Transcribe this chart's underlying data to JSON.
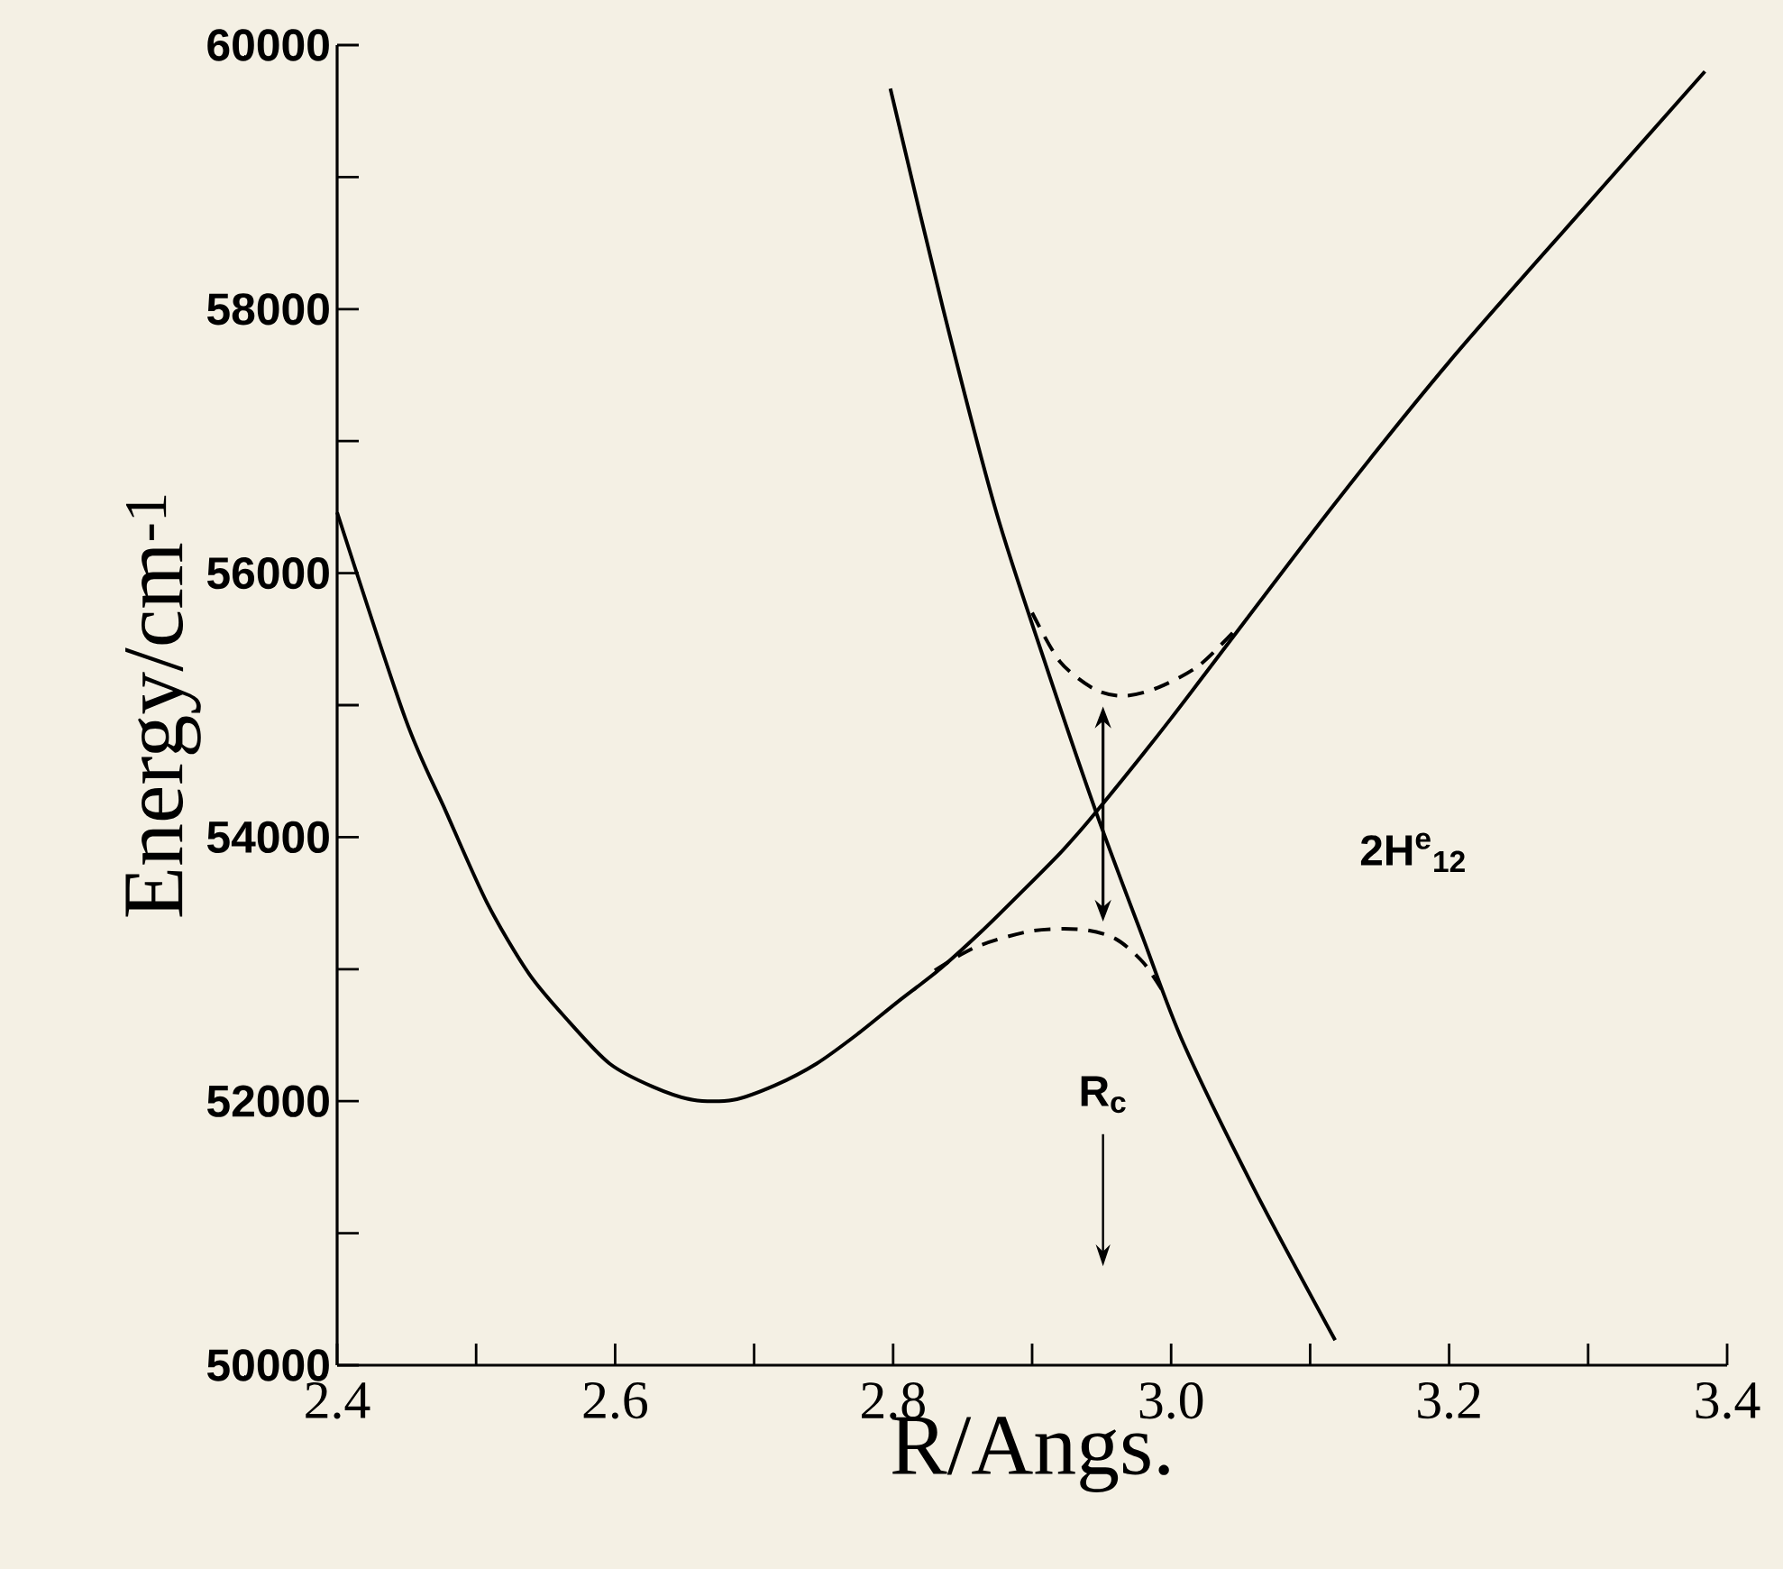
{
  "chart_data": {
    "type": "line",
    "xlabel": "R/Angs.",
    "ylabel": "Energy/cm$^{-1}$",
    "xlim": [
      2.4,
      3.4
    ],
    "ylim": [
      50000,
      60000
    ],
    "xticks": [
      2.4,
      {
        "value": 2.5,
        "label": null
      },
      2.6,
      {
        "value": 2.7,
        "label": null
      },
      2.8,
      {
        "value": 2.9,
        "label": null
      },
      {
        "value": 3,
        "label": "3.0"
      },
      {
        "value": 3.1,
        "label": null
      },
      3.2,
      {
        "value": 3.3,
        "label": null
      },
      3.4
    ],
    "yticks": [
      50000,
      {
        "value": 51000,
        "label": null
      },
      52000,
      {
        "value": 53000,
        "label": null
      },
      54000,
      {
        "value": 55000,
        "label": null
      },
      56000,
      {
        "value": 57000,
        "label": null
      },
      58000,
      {
        "value": 59000,
        "label": null
      },
      60000
    ],
    "series": [
      {
        "color": "#000000",
        "x": [
          2.4,
          2.449,
          2.478,
          2.508,
          2.538,
          2.567,
          2.596,
          2.627,
          2.656,
          2.685,
          2.715,
          2.745,
          2.774,
          2.803,
          2.833,
          2.863,
          2.892,
          2.922,
          2.946,
          3.0,
          3.114,
          3.2,
          3.3,
          3.384
        ],
        "values": [
          56460,
          54900,
          54200,
          53500,
          52965,
          52600,
          52285,
          52110,
          52010,
          52010,
          52120,
          52285,
          52505,
          52750,
          52995,
          53280,
          53580,
          53900,
          54190,
          54900,
          56475,
          57600,
          58800,
          59800
        ]
      },
      {
        "color": "#000000",
        "x": [
          2.798,
          2.836,
          2.874,
          2.91,
          2.946,
          2.98,
          3.009,
          3.06,
          3.118
        ],
        "values": [
          59670,
          58000,
          56470,
          55300,
          54190,
          53230,
          52435,
          51330,
          50190
        ]
      },
      {
        "color": "#000000",
        "line_style": "dashed",
        "x": [
          2.83,
          2.86,
          2.9,
          2.936,
          2.96,
          2.98,
          2.996
        ],
        "values": [
          52990,
          53170,
          53290,
          53300,
          53230,
          53050,
          52800
        ]
      },
      {
        "color": "#000000",
        "line_style": "dashed",
        "x": [
          2.9,
          2.92,
          2.945,
          2.966,
          2.99,
          3.02,
          3.049
        ],
        "values": [
          55700,
          55330,
          55120,
          55070,
          55130,
          55300,
          55600
        ]
      }
    ],
    "annotations": [
      "2H$^{e}$$_{12}$",
      "R$_{c}$"
    ]
  }
}
